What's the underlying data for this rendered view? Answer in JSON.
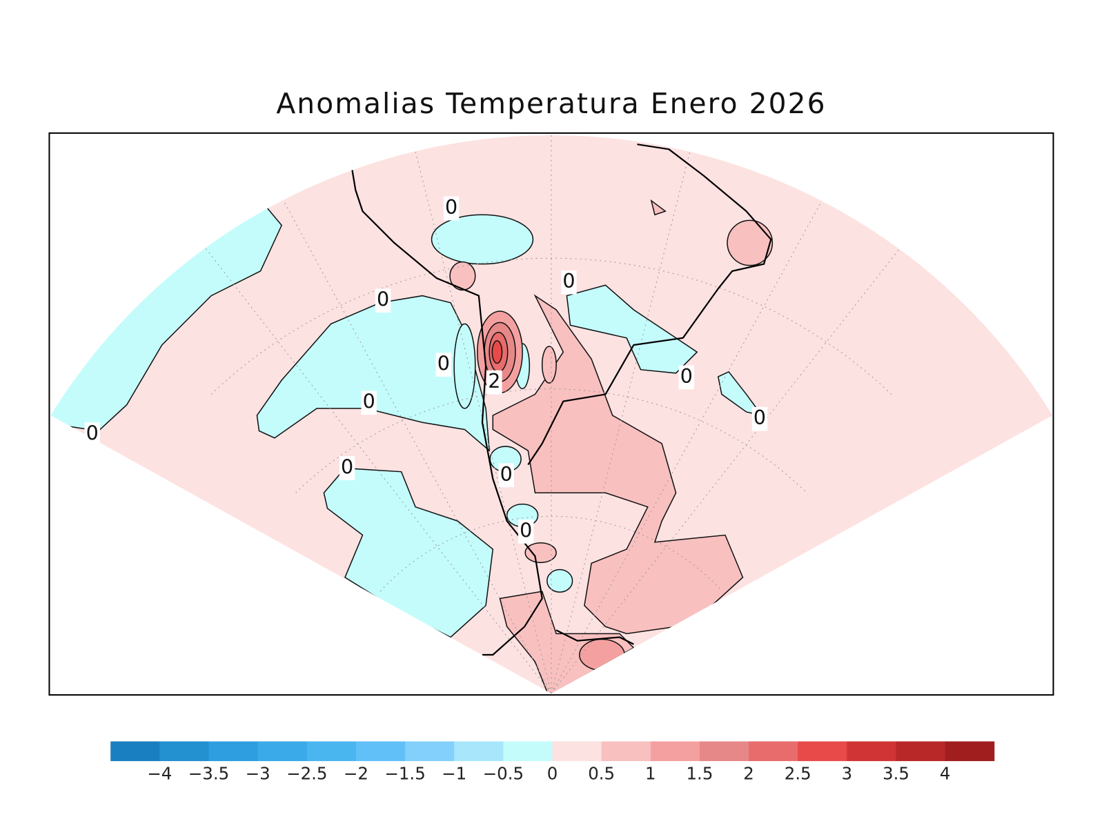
{
  "title": "Anomalias Temperatura Enero 2026",
  "colorbar": {
    "colors": [
      "#1a7fc0",
      "#2390d0",
      "#2e9ee0",
      "#3aaae8",
      "#4ab6f0",
      "#62c0f8",
      "#82d0fb",
      "#a8e6fc",
      "#c4fcfc",
      "#fde2e2",
      "#f9c0c0",
      "#f5a0a0",
      "#e68888",
      "#e86c6c",
      "#e84a4a",
      "#d03434",
      "#b82828",
      "#a01e1e"
    ],
    "ticks": [
      {
        "value": -4,
        "label": "−4"
      },
      {
        "value": -3.5,
        "label": "−3.5"
      },
      {
        "value": -3,
        "label": "−3"
      },
      {
        "value": -2.5,
        "label": "−2.5"
      },
      {
        "value": -2,
        "label": "−2"
      },
      {
        "value": -1.5,
        "label": "−1.5"
      },
      {
        "value": -1,
        "label": "−1"
      },
      {
        "value": -0.5,
        "label": "−0.5"
      },
      0,
      0.5,
      1,
      1.5,
      2,
      2.5,
      3,
      3.5,
      4
    ]
  },
  "contour_labels": [
    0,
    0,
    0,
    0,
    0,
    0,
    0,
    0,
    0,
    0,
    0,
    2
  ]
}
